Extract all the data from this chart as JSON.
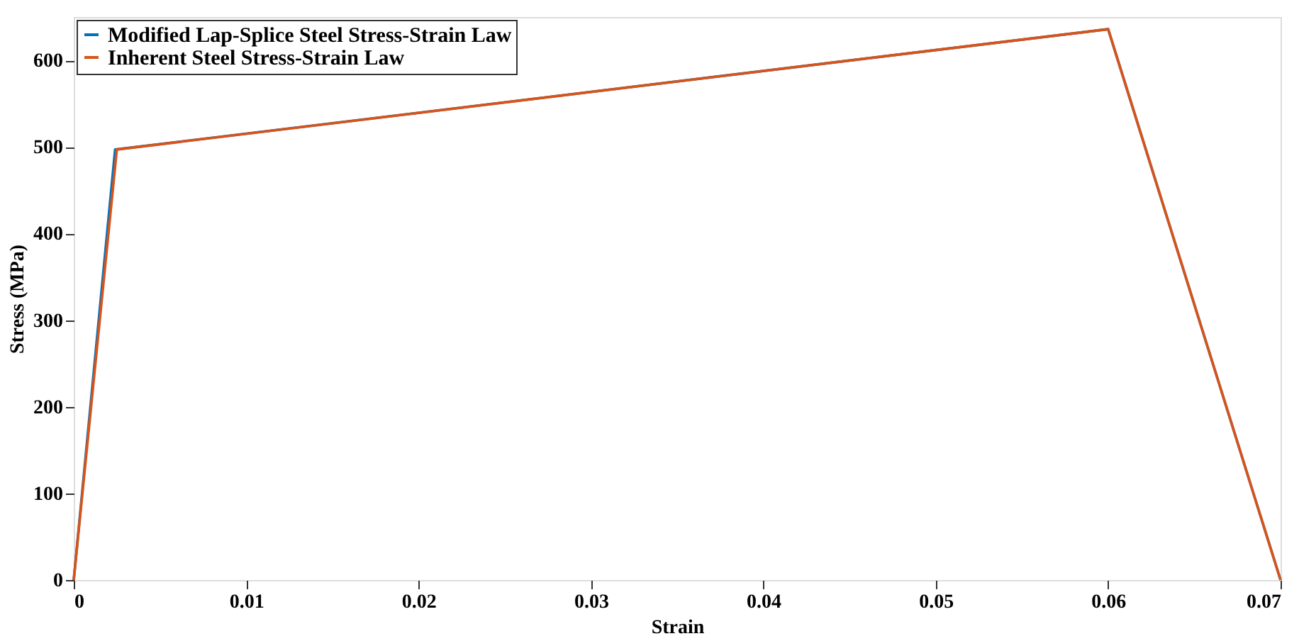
{
  "chart_data": {
    "type": "line",
    "xlabel": "Strain",
    "ylabel": "Stress (MPa)",
    "xlim": [
      0,
      0.07
    ],
    "xticks": [
      0,
      0.01,
      0.02,
      0.03,
      0.04,
      0.05,
      0.06,
      0.07
    ],
    "ylim": [
      0,
      650
    ],
    "yticks": [
      0,
      100,
      200,
      300,
      400,
      500,
      600
    ],
    "grid": false,
    "legend": "top left",
    "marker": "none",
    "line_style": "solid",
    "series": [
      {
        "name": "Modified Lap-Splice Steel Stress-Strain Law",
        "color": "#0072bd",
        "x": [
          0,
          0.0024,
          0.06,
          0.07
        ],
        "values": [
          0,
          497,
          636,
          0
        ]
      },
      {
        "name": "Inherent Steel Stress-Strain Law",
        "color": "#d95319",
        "x": [
          0,
          0.0025,
          0.06,
          0.07
        ],
        "values": [
          0,
          497,
          636,
          0
        ]
      }
    ]
  }
}
